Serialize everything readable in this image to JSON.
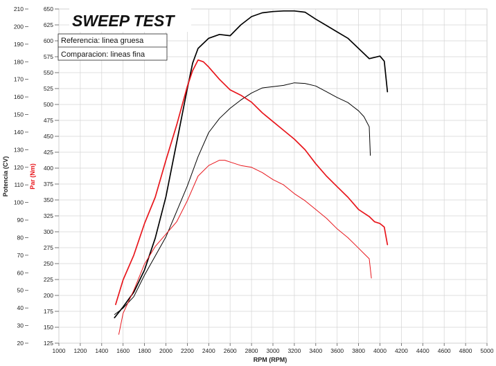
{
  "chart_data": {
    "type": "line",
    "title": "SWEEP TEST",
    "legend_lines": [
      "Referencia: linea gruesa",
      "Comparacion: lineas fina"
    ],
    "xlabel": "RPM (RPM)",
    "ylabel_power": "Potencia (CV)",
    "ylabel_torque": "Par (Nm)",
    "xlim": [
      1000,
      5000
    ],
    "x_ticks": [
      1000,
      1200,
      1400,
      1600,
      1800,
      2000,
      2200,
      2400,
      2600,
      2800,
      3000,
      3200,
      3400,
      3600,
      3800,
      4000,
      4200,
      4400,
      4600,
      4800,
      5000
    ],
    "power_axis": {
      "ylim": [
        20,
        210
      ],
      "ticks": [
        20,
        30,
        40,
        50,
        60,
        70,
        80,
        90,
        100,
        110,
        120,
        130,
        140,
        150,
        160,
        170,
        180,
        190,
        200,
        210
      ]
    },
    "torque_axis": {
      "ylim": [
        125,
        650
      ],
      "ticks": [
        125,
        150,
        175,
        200,
        225,
        250,
        275,
        300,
        325,
        350,
        375,
        400,
        425,
        450,
        475,
        500,
        525,
        550,
        575,
        600,
        625,
        650
      ]
    },
    "grid": true,
    "series": [
      {
        "name": "Referencia: linea gruesa",
        "quantity": "Par (Nm)",
        "color": "#000000",
        "x": [
          1520,
          1600,
          1700,
          1800,
          1900,
          2000,
          2100,
          2200,
          2250,
          2300,
          2400,
          2500,
          2600,
          2700,
          2800,
          2900,
          3000,
          3100,
          3200,
          3300,
          3400,
          3500,
          3600,
          3700,
          3800,
          3850,
          3900,
          3950,
          4000,
          4040,
          4070
        ],
        "y": [
          165,
          182,
          205,
          240,
          290,
          355,
          440,
          525,
          565,
          588,
          604,
          610,
          608,
          625,
          638,
          644,
          646,
          647,
          647,
          645,
          634,
          624,
          614,
          604,
          588,
          580,
          572,
          574,
          576,
          568,
          520
        ]
      },
      {
        "name": "Comparacion: lineas fina",
        "quantity": "Par (Nm)",
        "color": "#000000",
        "x": [
          1520,
          1600,
          1700,
          1800,
          1900,
          2000,
          2100,
          2200,
          2300,
          2400,
          2500,
          2600,
          2700,
          2800,
          2900,
          3000,
          3100,
          3200,
          3300,
          3400,
          3500,
          3600,
          3700,
          3800,
          3850,
          3900,
          3910
        ],
        "y": [
          170,
          180,
          198,
          232,
          262,
          292,
          332,
          372,
          418,
          456,
          478,
          494,
          507,
          518,
          526,
          528,
          530,
          534,
          533,
          529,
          520,
          511,
          503,
          490,
          481,
          465,
          420
        ]
      },
      {
        "name": "Referencia: linea gruesa",
        "quantity": "Potencia (CV)",
        "color": "#e8151b",
        "x": [
          1530,
          1600,
          1700,
          1800,
          1900,
          2000,
          2100,
          2200,
          2250,
          2300,
          2350,
          2400,
          2500,
          2600,
          2700,
          2800,
          2900,
          3000,
          3100,
          3200,
          3300,
          3400,
          3500,
          3600,
          3700,
          3800,
          3850,
          3900,
          3950,
          4000,
          4040,
          4070
        ],
        "y": [
          42,
          56,
          70,
          88,
          103,
          124,
          144,
          166,
          175,
          181,
          180,
          177,
          170,
          164,
          161,
          157,
          151,
          146,
          141,
          136,
          130,
          122,
          115,
          109,
          103,
          96,
          94,
          92,
          89,
          88,
          86,
          76
        ]
      },
      {
        "name": "Comparacion: lineas fina",
        "quantity": "Potencia (CV)",
        "color": "#e8151b",
        "x": [
          1560,
          1600,
          1700,
          1800,
          1900,
          2000,
          2100,
          2200,
          2300,
          2400,
          2500,
          2550,
          2600,
          2700,
          2800,
          2900,
          3000,
          3100,
          3200,
          3300,
          3400,
          3500,
          3600,
          3700,
          3800,
          3850,
          3900,
          3920
        ],
        "y": [
          25,
          37,
          50,
          65,
          75,
          82,
          89,
          101,
          115,
          121,
          124,
          124,
          123,
          121,
          120,
          117,
          113,
          110,
          105,
          101,
          96,
          91,
          85,
          80,
          74,
          71,
          68,
          57
        ]
      }
    ]
  }
}
